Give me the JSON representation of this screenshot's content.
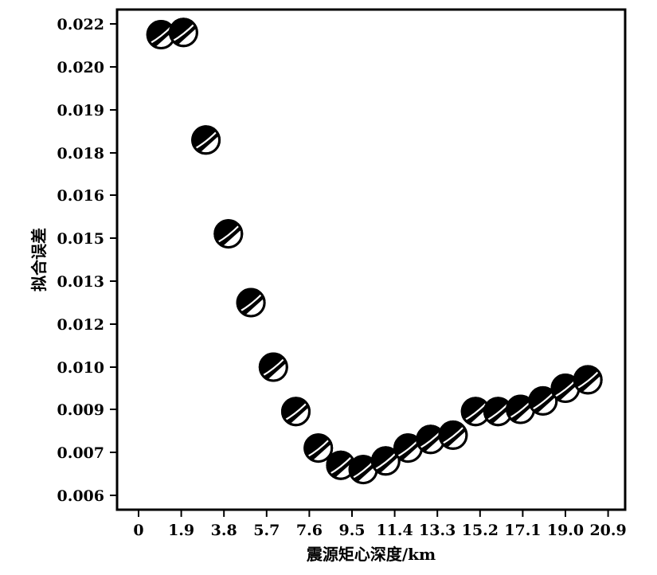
{
  "chart_data": {
    "type": "scatter",
    "title": "",
    "xlabel": "震源矩心深度/km",
    "ylabel": "拟合误差",
    "x_ticks": [
      "0",
      "1.9",
      "3.8",
      "5.7",
      "7.6",
      "9.5",
      "11.4",
      "13.3",
      "15.2",
      "17.1",
      "19.0",
      "20.9"
    ],
    "y_ticks": [
      "0.006",
      "0.007",
      "0.009",
      "0.010",
      "0.012",
      "0.013",
      "0.015",
      "0.016",
      "0.018",
      "0.019",
      "0.020",
      "0.022"
    ],
    "xlim": [
      -1,
      22
    ],
    "grid": false,
    "marker": "focal-mechanism-beachball",
    "colors": {
      "fill_dark": "#000000",
      "fill_light": "#ffffff",
      "axis": "#000000"
    },
    "points": [
      {
        "x": 1,
        "y": 0.0215
      },
      {
        "x": 2,
        "y": 0.0216
      },
      {
        "x": 3,
        "y": 0.0183
      },
      {
        "x": 4,
        "y": 0.0151
      },
      {
        "x": 5,
        "y": 0.0125
      },
      {
        "x": 6,
        "y": 0.01
      },
      {
        "x": 7,
        "y": 0.0089
      },
      {
        "x": 8,
        "y": 0.0072
      },
      {
        "x": 9,
        "y": 0.0067
      },
      {
        "x": 10,
        "y": 0.0066
      },
      {
        "x": 11,
        "y": 0.0068
      },
      {
        "x": 12,
        "y": 0.0072
      },
      {
        "x": 13,
        "y": 0.0076
      },
      {
        "x": 14,
        "y": 0.0078
      },
      {
        "x": 15,
        "y": 0.0089
      },
      {
        "x": 16,
        "y": 0.0089
      },
      {
        "x": 17,
        "y": 0.009
      },
      {
        "x": 18,
        "y": 0.0092
      },
      {
        "x": 19,
        "y": 0.0095
      },
      {
        "x": 20,
        "y": 0.0097
      }
    ]
  }
}
